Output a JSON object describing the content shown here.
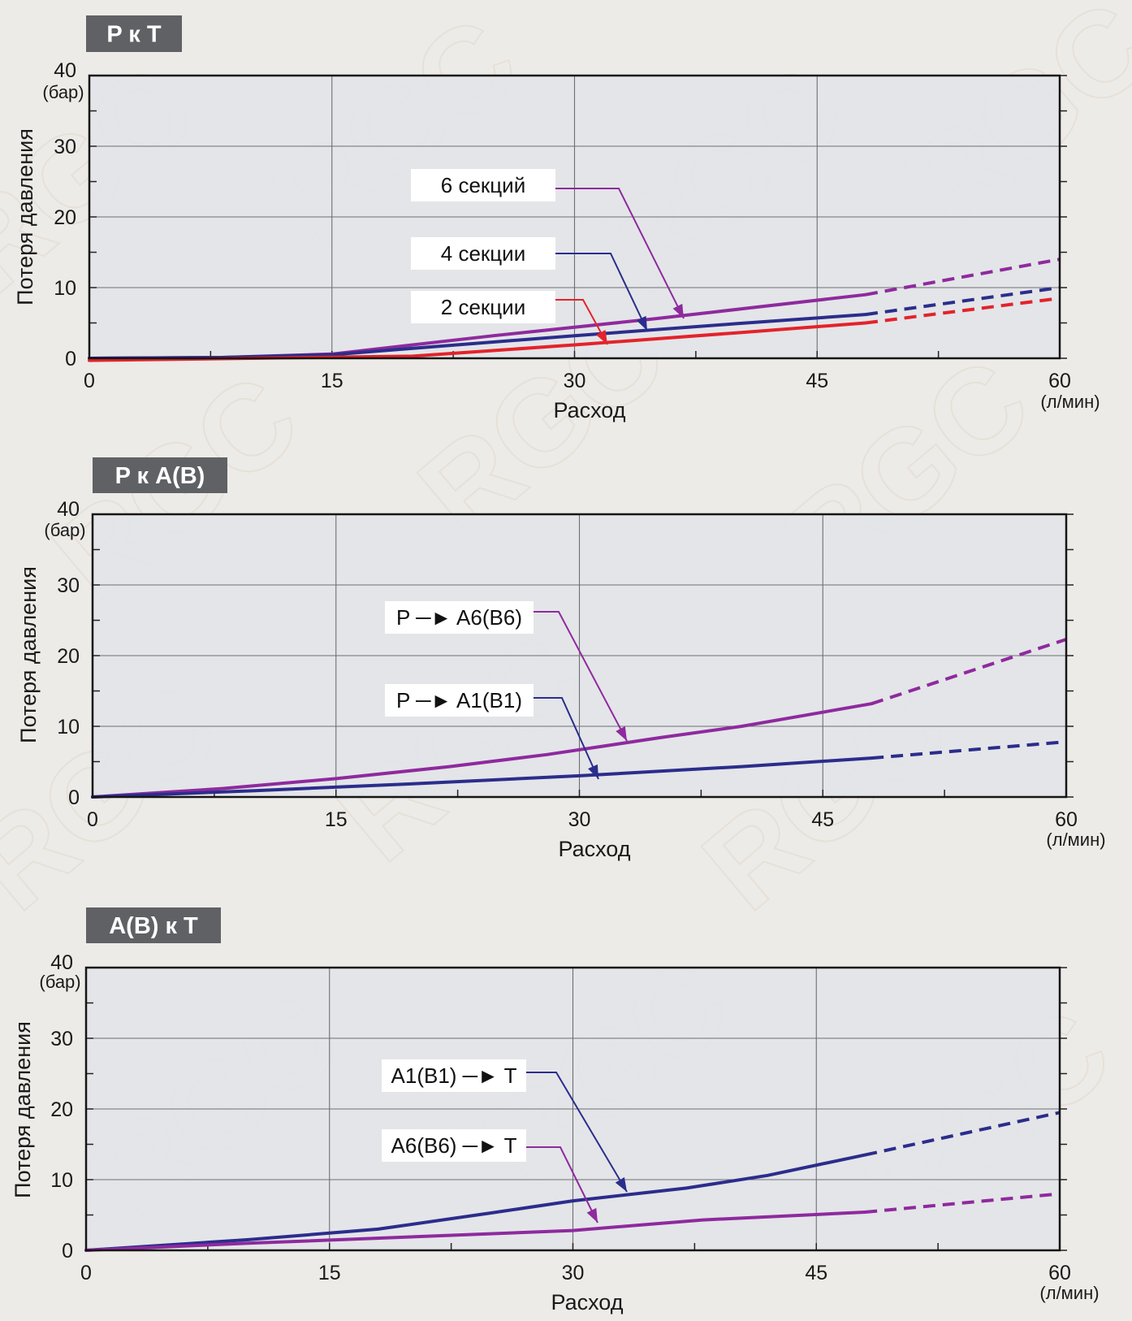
{
  "charts": [
    {
      "badge": "P к T",
      "callouts": [
        "6 секций",
        "4 секции",
        "2 секции"
      ],
      "chart_data": {
        "type": "line",
        "xlabel": "Расход",
        "x_unit": "(л/мин)",
        "ylabel": "Потеря давления",
        "y_unit": "(бар)",
        "xlim": [
          0,
          60
        ],
        "ylim": [
          0,
          40
        ],
        "xticks": [
          "0",
          "15",
          "30",
          "45",
          "60"
        ],
        "yticks": [
          "0",
          "10",
          "20",
          "30",
          "40"
        ],
        "grid": true,
        "solid_until_x": 48,
        "series": [
          {
            "name": "6 секций",
            "color": "#8e2a9e",
            "x": [
              0,
              8,
              15,
              25,
              35,
              48,
              60
            ],
            "y": [
              0,
              0.1,
              0.6,
              3.2,
              5.6,
              9.0,
              14.0
            ]
          },
          {
            "name": "4 секции",
            "color": "#2b2d8c",
            "x": [
              0,
              8,
              15,
              20,
              30,
              40,
              48,
              60
            ],
            "y": [
              0,
              0.1,
              0.5,
              1.4,
              3.2,
              4.9,
              6.2,
              10.0
            ]
          },
          {
            "name": "2 секции",
            "color": "#e3232b",
            "x": [
              0,
              10,
              20,
              30,
              40,
              48,
              60
            ],
            "y": [
              -0.3,
              0,
              0.3,
              1.9,
              3.6,
              5.0,
              8.5
            ]
          }
        ]
      }
    },
    {
      "badge": "P к A(B)",
      "callouts": [
        "P ─► A6(B6)",
        "P ─► A1(B1)"
      ],
      "chart_data": {
        "type": "line",
        "xlabel": "Расход",
        "x_unit": "(л/мин)",
        "ylabel": "Потеря давления",
        "y_unit": "(бар)",
        "xlim": [
          0,
          60
        ],
        "ylim": [
          0,
          40
        ],
        "xticks": [
          "0",
          "15",
          "30",
          "45",
          "60"
        ],
        "yticks": [
          "0",
          "10",
          "20",
          "30",
          "40"
        ],
        "grid": true,
        "solid_until_x": 48,
        "series": [
          {
            "name": "P ─► A6(B6)",
            "color": "#8e2a9e",
            "x": [
              0,
              8,
              15,
              22,
              28,
              35,
              40,
              48,
              60
            ],
            "y": [
              0,
              1.2,
              2.6,
              4.3,
              6.0,
              8.4,
              10.0,
              13.2,
              22.3
            ]
          },
          {
            "name": "P ─► A1(B1)",
            "color": "#2b2d8c",
            "x": [
              0,
              10,
              20,
              30,
              40,
              48,
              60
            ],
            "y": [
              0,
              0.9,
              1.9,
              3.0,
              4.3,
              5.5,
              7.8
            ]
          }
        ]
      }
    },
    {
      "badge": "A(B) к T",
      "callouts": [
        "A1(B1) ─► T",
        "A6(B6) ─► T"
      ],
      "chart_data": {
        "type": "line",
        "xlabel": "Расход",
        "x_unit": "(л/мин)",
        "ylabel": "Потеря давления",
        "y_unit": "(бар)",
        "xlim": [
          0,
          60
        ],
        "ylim": [
          0,
          40
        ],
        "xticks": [
          "0",
          "15",
          "30",
          "45",
          "60"
        ],
        "yticks": [
          "0",
          "10",
          "20",
          "30",
          "40"
        ],
        "grid": true,
        "solid_until_x": 48,
        "series": [
          {
            "name": "A1(B1) ─► T",
            "color": "#2b2d8c",
            "x": [
              0,
              10,
              18,
              25,
              30,
              37,
              42,
              48,
              60
            ],
            "y": [
              0,
              1.5,
              3.0,
              5.3,
              7.0,
              8.8,
              10.6,
              13.5,
              19.5
            ]
          },
          {
            "name": "A6(B6) ─► T",
            "color": "#8e2a9e",
            "x": [
              0,
              10,
              20,
              30,
              38,
              48,
              60
            ],
            "y": [
              0,
              1.0,
              1.9,
              2.8,
              4.3,
              5.4,
              8.0
            ]
          }
        ]
      }
    }
  ],
  "watermark": "RGC"
}
